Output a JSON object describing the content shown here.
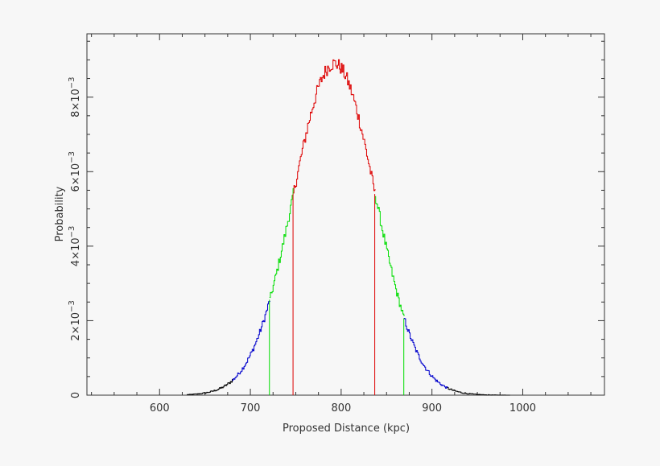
{
  "chart_data": {
    "type": "line",
    "title": "",
    "xlabel": "Proposed Distance (kpc)",
    "ylabel": "Probability",
    "xlim": [
      520,
      1090
    ],
    "ylim": [
      0,
      0.0097
    ],
    "x_ticks": [
      600,
      700,
      800,
      900,
      1000
    ],
    "x_tick_labels": [
      "600",
      "700",
      "800",
      "900",
      "1000"
    ],
    "y_ticks": [
      0,
      0.002,
      0.004,
      0.006,
      0.008
    ],
    "y_tick_labels": [
      "0",
      "2×10",
      "4×10",
      "6×10",
      "8×10"
    ],
    "y_tick_exponent": "−3",
    "grid": false,
    "distribution": {
      "mean": 792,
      "sigma": 45,
      "peak": 0.0089
    },
    "series": [
      {
        "x": [
          630,
          680
        ],
        "color": "#000000"
      },
      {
        "x": [
          680,
          721
        ],
        "color": "#0000cc"
      },
      {
        "x": [
          721,
          747
        ],
        "color": "#00dd00"
      },
      {
        "x": [
          747,
          837
        ],
        "color": "#dd0000"
      },
      {
        "x": [
          837,
          869
        ],
        "color": "#00dd00"
      },
      {
        "x": [
          869,
          917
        ],
        "color": "#0000cc"
      },
      {
        "x": [
          917,
          985
        ],
        "color": "#000000"
      }
    ],
    "vertical_lines": [
      {
        "x": 721,
        "color": "#00dd00"
      },
      {
        "x": 747,
        "color": "#dd0000"
      },
      {
        "x": 837,
        "color": "#dd0000"
      },
      {
        "x": 869,
        "color": "#00dd00"
      }
    ]
  }
}
